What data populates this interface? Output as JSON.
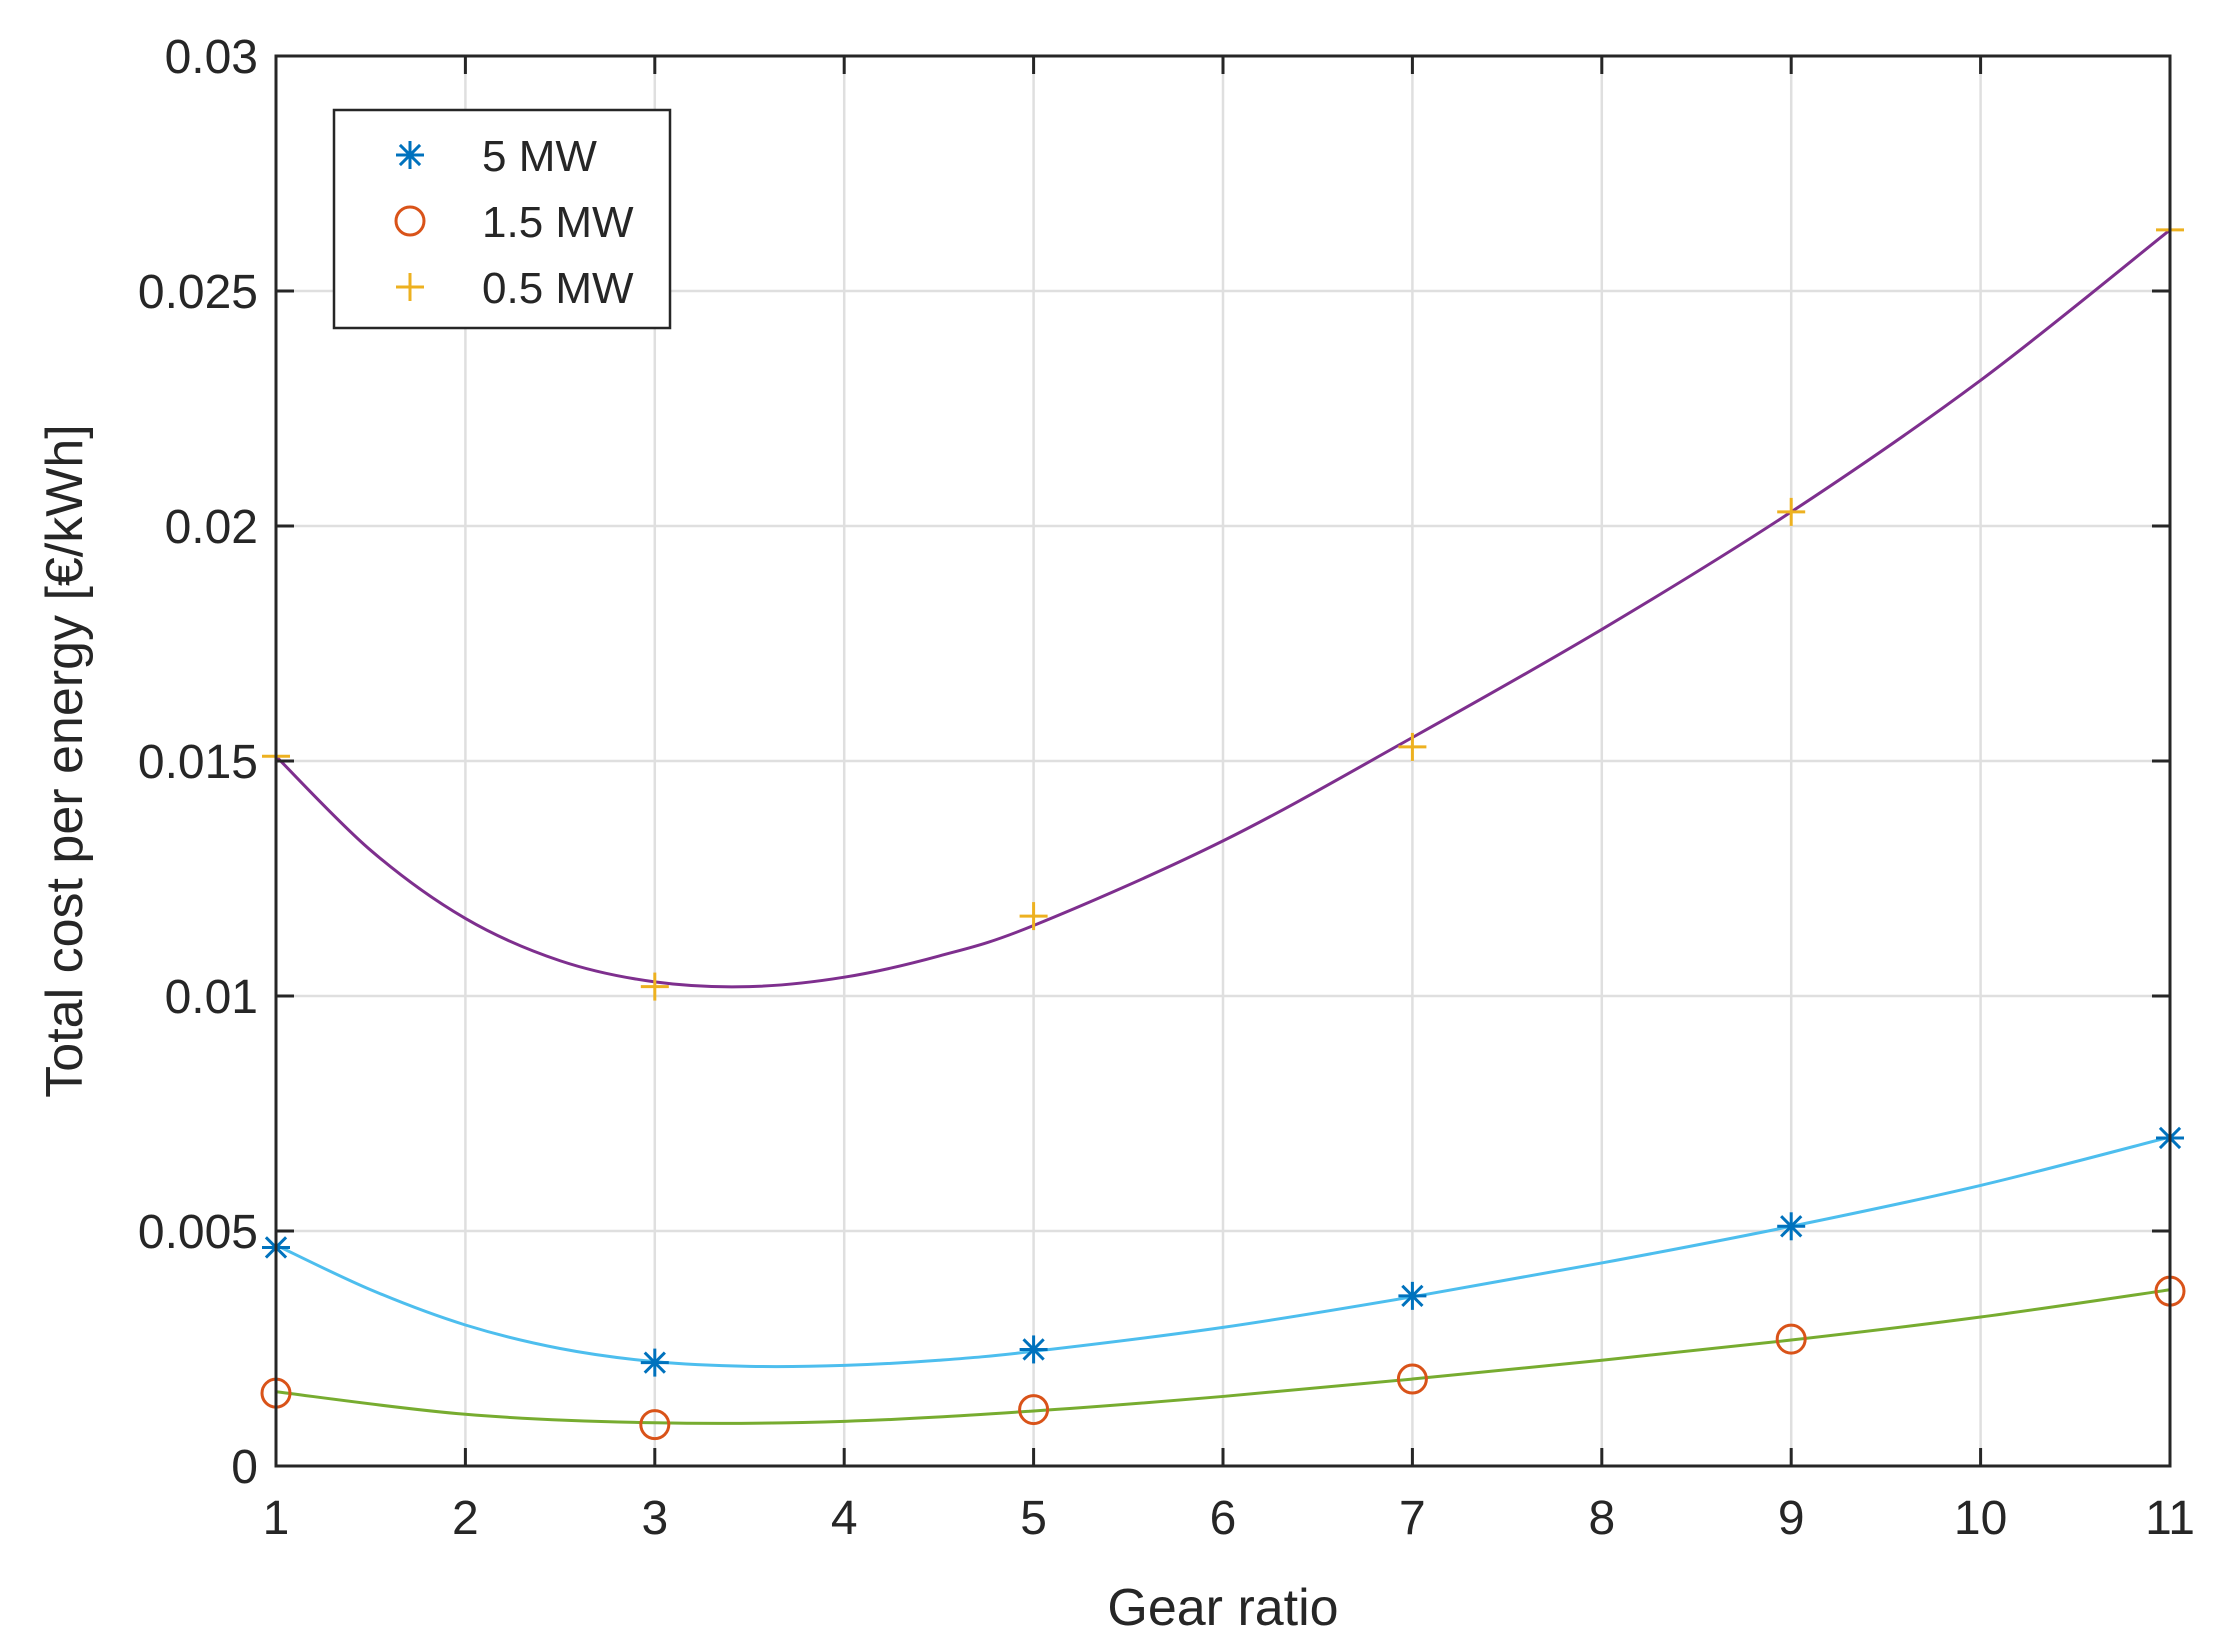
{
  "chart_data": {
    "type": "scatter",
    "title": "",
    "xlabel": "Gear ratio",
    "ylabel": "Total cost per energy [€/kWh]",
    "xlim": [
      1,
      11
    ],
    "ylim": [
      0,
      0.03
    ],
    "grid": true,
    "xticks": [
      "1",
      "2",
      "3",
      "4",
      "5",
      "6",
      "7",
      "8",
      "9",
      "10",
      "11"
    ],
    "yticks": [
      "0",
      "0.005",
      "0.01",
      "0.015",
      "0.02",
      "0.025",
      "0.03"
    ],
    "legend_position": "top-left",
    "x": [
      1,
      3,
      5,
      7,
      9,
      11
    ],
    "series": [
      {
        "name": "5 MW",
        "marker": "asterisk",
        "marker_color": "#0072BD",
        "fit_color": "#4DBEEE",
        "values": [
          0.00465,
          0.0022,
          0.00248,
          0.00362,
          0.0051,
          0.00698
        ],
        "fit": [
          [
            1,
            0.0047
          ],
          [
            1.5,
            0.00375
          ],
          [
            2,
            0.003
          ],
          [
            2.5,
            0.0025
          ],
          [
            3,
            0.00222
          ],
          [
            3.5,
            0.00212
          ],
          [
            4,
            0.00214
          ],
          [
            4.5,
            0.00225
          ],
          [
            5,
            0.00244
          ],
          [
            6,
            0.00295
          ],
          [
            7,
            0.0036
          ],
          [
            8,
            0.00432
          ],
          [
            9,
            0.0051
          ],
          [
            10,
            0.00597
          ],
          [
            11,
            0.007
          ]
        ]
      },
      {
        "name": "1.5 MW",
        "marker": "circle",
        "marker_color": "#D95319",
        "fit_color": "#77AC30",
        "values": [
          0.00155,
          0.00088,
          0.0012,
          0.00185,
          0.0027,
          0.00372
        ],
        "fit": [
          [
            1,
            0.00158
          ],
          [
            2,
            0.0011
          ],
          [
            3,
            0.00092
          ],
          [
            4,
            0.00095
          ],
          [
            5,
            0.00117
          ],
          [
            6,
            0.00148
          ],
          [
            7,
            0.00185
          ],
          [
            8,
            0.00225
          ],
          [
            9,
            0.00268
          ],
          [
            10,
            0.00317
          ],
          [
            11,
            0.00375
          ]
        ]
      },
      {
        "name": "0.5 MW",
        "marker": "plus",
        "marker_color": "#EDB120",
        "fit_color": "#7E2F8E",
        "values": [
          0.0151,
          0.0102,
          0.0117,
          0.0153,
          0.0203,
          0.0263
        ],
        "fit": [
          [
            1,
            0.0151
          ],
          [
            1.5,
            0.0131
          ],
          [
            2,
            0.01165
          ],
          [
            2.5,
            0.01075
          ],
          [
            3,
            0.0103
          ],
          [
            3.5,
            0.0102
          ],
          [
            4,
            0.0104
          ],
          [
            4.5,
            0.01085
          ],
          [
            5,
            0.0115
          ],
          [
            6,
            0.0133
          ],
          [
            7,
            0.0155
          ],
          [
            8,
            0.0178
          ],
          [
            9,
            0.0203
          ],
          [
            10,
            0.0231
          ],
          [
            11,
            0.0263
          ]
        ]
      }
    ]
  }
}
